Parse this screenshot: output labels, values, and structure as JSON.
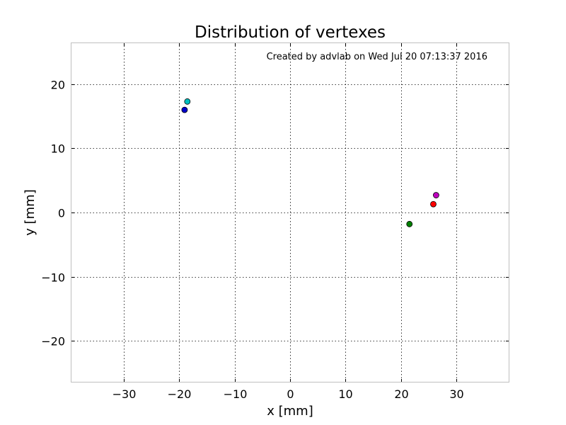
{
  "chart_data": {
    "type": "scatter",
    "title": "Distribution of vertexes",
    "xlabel": "x [mm]",
    "ylabel": "y [mm]",
    "xlim": [
      -39.5,
      39.5
    ],
    "ylim": [
      -26.5,
      26.5
    ],
    "xticks": [
      -30,
      -20,
      -10,
      0,
      10,
      20,
      30
    ],
    "xtick_labels": [
      "−30",
      "−20",
      "−10",
      "0",
      "10",
      "20",
      "30"
    ],
    "yticks": [
      -20,
      -10,
      0,
      10,
      20
    ],
    "ytick_labels": [
      "−20",
      "−10",
      "0",
      "10",
      "20"
    ],
    "grid": true,
    "annotation": "Created by advlab on Wed Jul 20 07:13:37 2016",
    "points": [
      {
        "x": -19.0,
        "y": 16.0,
        "color": "#0000cc"
      },
      {
        "x": -18.5,
        "y": 17.3,
        "color": "#00bfbf"
      },
      {
        "x": 21.5,
        "y": -1.8,
        "color": "#007f00"
      },
      {
        "x": 25.8,
        "y": 1.3,
        "color": "#ff0000"
      },
      {
        "x": 26.3,
        "y": 2.7,
        "color": "#bf00bf"
      }
    ]
  }
}
